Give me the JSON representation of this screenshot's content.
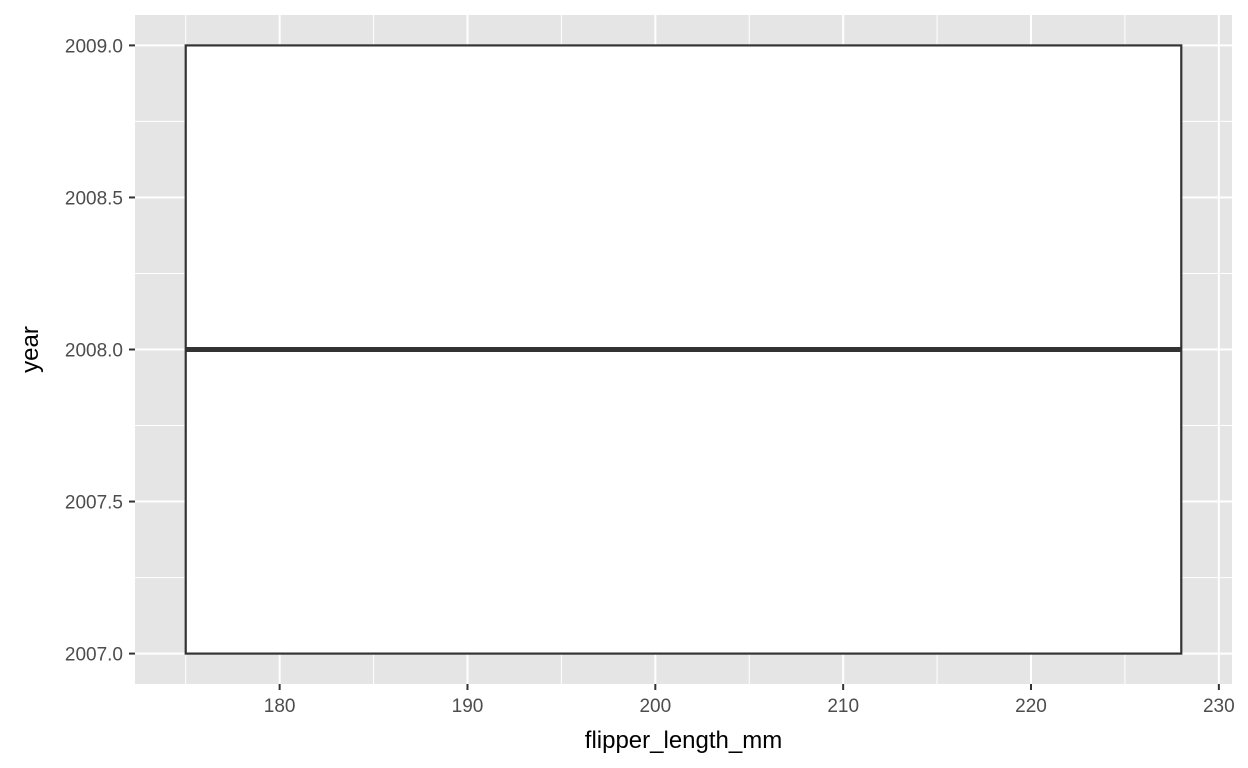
{
  "chart_data": {
    "type": "boxplot",
    "xlabel": "flipper_length_mm",
    "ylabel": "year",
    "xlim": [
      172.3,
      230.7
    ],
    "ylim": [
      2006.9,
      2009.1
    ],
    "x_ticks": [
      180,
      190,
      200,
      210,
      220,
      230
    ],
    "x_tick_labels": [
      "180",
      "190",
      "200",
      "210",
      "220",
      "230"
    ],
    "y_ticks": [
      2007.0,
      2007.5,
      2008.0,
      2008.5,
      2009.0
    ],
    "y_tick_labels": [
      "2007.0",
      "2007.5",
      "2008.0",
      "2008.5",
      "2009.0"
    ],
    "grid": true,
    "panel_background": "#e5e5e5",
    "grid_color": "#ffffff",
    "box": {
      "x_min": 175,
      "x_max": 228,
      "lower": 2007.0,
      "median": 2008.0,
      "upper": 2009.0,
      "fill": "#ffffff",
      "stroke": "#333333"
    }
  }
}
